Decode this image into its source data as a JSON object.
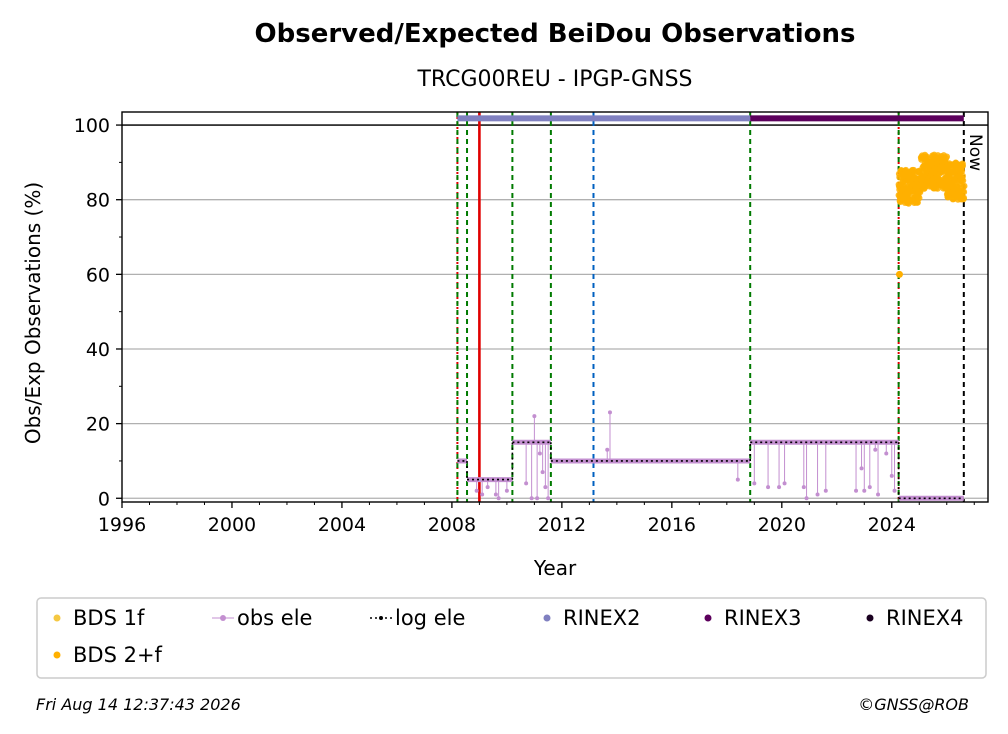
{
  "chart_data": {
    "type": "scatter",
    "title": "Observed/Expected BeiDou Observations",
    "subtitle": "TRCG00REU - IPGP-GNSS",
    "xlabel": "Year",
    "ylabel": "Obs/Exp Observations (%)",
    "xlim": [
      1996,
      2027.5
    ],
    "ylim": [
      -1,
      103.5
    ],
    "x_ticks": [
      1996,
      2000,
      2004,
      2008,
      2012,
      2016,
      2020,
      2024
    ],
    "y_ticks": [
      0,
      20,
      40,
      60,
      80,
      100
    ],
    "grid": "horizontal",
    "now_label": "Now",
    "now_x": 2026.62,
    "colors": {
      "bds_1f": "#f5c842",
      "bds_2f": "#ffb000",
      "obs_ele": "#c38fd0",
      "log_ele": "#000000",
      "rinex2": "#8080c0",
      "rinex3": "#5c005c",
      "rinex4": "#1a0020",
      "red": "#e00000",
      "green": "#007a00",
      "blue": "#0060c0"
    },
    "vlines": [
      {
        "x": 2008.2,
        "style": "green-red-dashed"
      },
      {
        "x": 2008.55,
        "style": "green-dashed"
      },
      {
        "x": 2009.0,
        "style": "red-solid"
      },
      {
        "x": 2010.2,
        "style": "green-dashed"
      },
      {
        "x": 2011.6,
        "style": "green-dashed"
      },
      {
        "x": 2013.15,
        "style": "blue-dashed"
      },
      {
        "x": 2018.85,
        "style": "green-dashed"
      },
      {
        "x": 2024.25,
        "style": "green-red-dashed"
      },
      {
        "x": 2026.62,
        "style": "black-dashed"
      }
    ],
    "rinex_bars": [
      {
        "name": "RINEX2",
        "x0": 2008.2,
        "x1": 2018.85
      },
      {
        "name": "RINEX3",
        "x0": 2018.85,
        "x1": 2026.62
      }
    ],
    "log_ele_steps": [
      {
        "x0": 2008.2,
        "x1": 2008.55,
        "y": 10
      },
      {
        "x0": 2008.55,
        "x1": 2010.2,
        "y": 5
      },
      {
        "x0": 2010.2,
        "x1": 2011.6,
        "y": 15
      },
      {
        "x0": 2011.6,
        "x1": 2018.85,
        "y": 10
      },
      {
        "x0": 2018.85,
        "x1": 2024.25,
        "y": 15
      },
      {
        "x0": 2024.25,
        "x1": 2026.62,
        "y": 0
      }
    ],
    "obs_ele_dips": [
      {
        "x": 2008.9,
        "y": 2
      },
      {
        "x": 2009.1,
        "y": 1
      },
      {
        "x": 2009.3,
        "y": 3
      },
      {
        "x": 2009.6,
        "y": 1
      },
      {
        "x": 2009.7,
        "y": 0
      },
      {
        "x": 2010.0,
        "y": 2
      },
      {
        "x": 2010.7,
        "y": 4
      },
      {
        "x": 2010.9,
        "y": 0
      },
      {
        "x": 2011.0,
        "y": 22
      },
      {
        "x": 2011.1,
        "y": 0
      },
      {
        "x": 2011.2,
        "y": 12
      },
      {
        "x": 2011.3,
        "y": 7
      },
      {
        "x": 2011.4,
        "y": 3
      },
      {
        "x": 2011.5,
        "y": 0
      },
      {
        "x": 2013.65,
        "y": 13
      },
      {
        "x": 2013.75,
        "y": 23
      },
      {
        "x": 2018.4,
        "y": 5
      },
      {
        "x": 2019.0,
        "y": 4
      },
      {
        "x": 2019.5,
        "y": 3
      },
      {
        "x": 2019.9,
        "y": 3
      },
      {
        "x": 2020.1,
        "y": 4
      },
      {
        "x": 2020.8,
        "y": 3
      },
      {
        "x": 2020.9,
        "y": 0
      },
      {
        "x": 2021.3,
        "y": 1
      },
      {
        "x": 2021.6,
        "y": 2
      },
      {
        "x": 2022.7,
        "y": 2
      },
      {
        "x": 2022.9,
        "y": 8
      },
      {
        "x": 2023.0,
        "y": 2
      },
      {
        "x": 2023.2,
        "y": 3
      },
      {
        "x": 2023.4,
        "y": 13
      },
      {
        "x": 2023.5,
        "y": 1
      },
      {
        "x": 2023.8,
        "y": 12
      },
      {
        "x": 2024.0,
        "y": 6
      },
      {
        "x": 2024.1,
        "y": 2
      }
    ],
    "bds_2f_outliers": [
      {
        "x": 2024.28,
        "y": 60
      }
    ],
    "bds_2f_range": {
      "segments": [
        {
          "x0": 2024.25,
          "x1": 2025.05,
          "y_min": 79,
          "y_max": 88
        },
        {
          "x0": 2025.05,
          "x1": 2026.0,
          "y_min": 83,
          "y_max": 92
        },
        {
          "x0": 2026.0,
          "x1": 2026.62,
          "y_min": 80,
          "y_max": 90
        }
      ]
    },
    "legend": {
      "placement": "bottom",
      "entries": [
        {
          "key": "bds_1f",
          "label": "BDS 1f"
        },
        {
          "key": "obs_ele",
          "label": "obs ele"
        },
        {
          "key": "log_ele",
          "label": "log ele"
        },
        {
          "key": "rinex2",
          "label": "RINEX2"
        },
        {
          "key": "rinex3",
          "label": "RINEX3"
        },
        {
          "key": "rinex4",
          "label": "RINEX4"
        },
        {
          "key": "bds_2f",
          "label": "BDS 2+f"
        }
      ]
    }
  },
  "footer": {
    "timestamp": "Fri Aug 14 12:37:43 2026",
    "credit": "©GNSS@ROB"
  }
}
